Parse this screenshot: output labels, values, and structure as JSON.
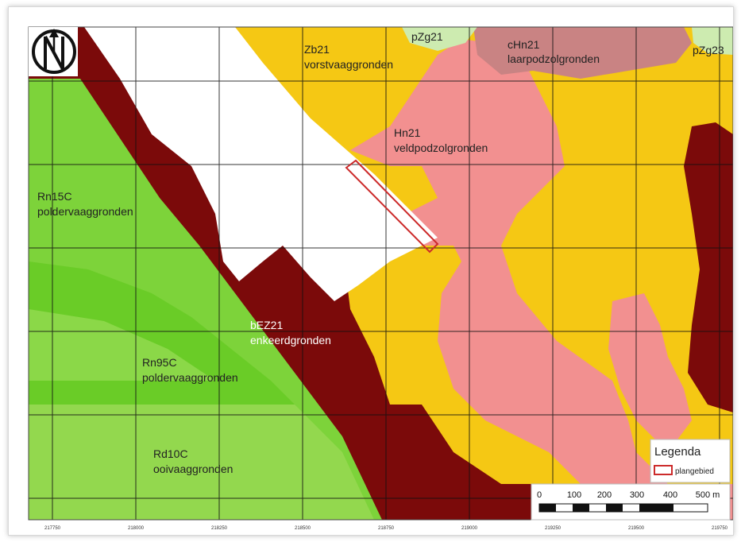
{
  "map": {
    "colors": {
      "dark_red": "#7b0a0a",
      "yellow": "#f5c814",
      "pink": "#f29090",
      "mauve": "#c98383",
      "light_green_top": "#cdebb0",
      "green_light": "#7dd33a",
      "green_mid": "#6acc27",
      "green_pale": "#93d84e",
      "white": "#ffffff",
      "plan_outline": "#cc2b2b"
    },
    "north_arrow_icon": "north-arrow-icon"
  },
  "soils": [
    {
      "code": "Zb21",
      "name": "vorstvaaggronden"
    },
    {
      "code": "pZg21",
      "name": ""
    },
    {
      "code": "cHn21",
      "name": "laarpodzolgronden"
    },
    {
      "code": "pZg23",
      "name": ""
    },
    {
      "code": "Hn21",
      "name": "veldpodzolgronden"
    },
    {
      "code": "Rn15C",
      "name": "poldervaaggronden"
    },
    {
      "code": "bEZ21",
      "name": "enkeerdgronden"
    },
    {
      "code": "Rn95C",
      "name": "poldervaaggronden"
    },
    {
      "code": "Rd10C",
      "name": "ooivaaggronden"
    }
  ],
  "axis": {
    "x_ticks": [
      "217750",
      "218000",
      "218250",
      "218500",
      "218750",
      "219000",
      "219250",
      "219500",
      "219750"
    ]
  },
  "legend": {
    "title": "Legenda",
    "item": "plangebied"
  },
  "scalebar": {
    "labels": [
      "0",
      "100",
      "200",
      "300",
      "400",
      "500 m"
    ]
  }
}
